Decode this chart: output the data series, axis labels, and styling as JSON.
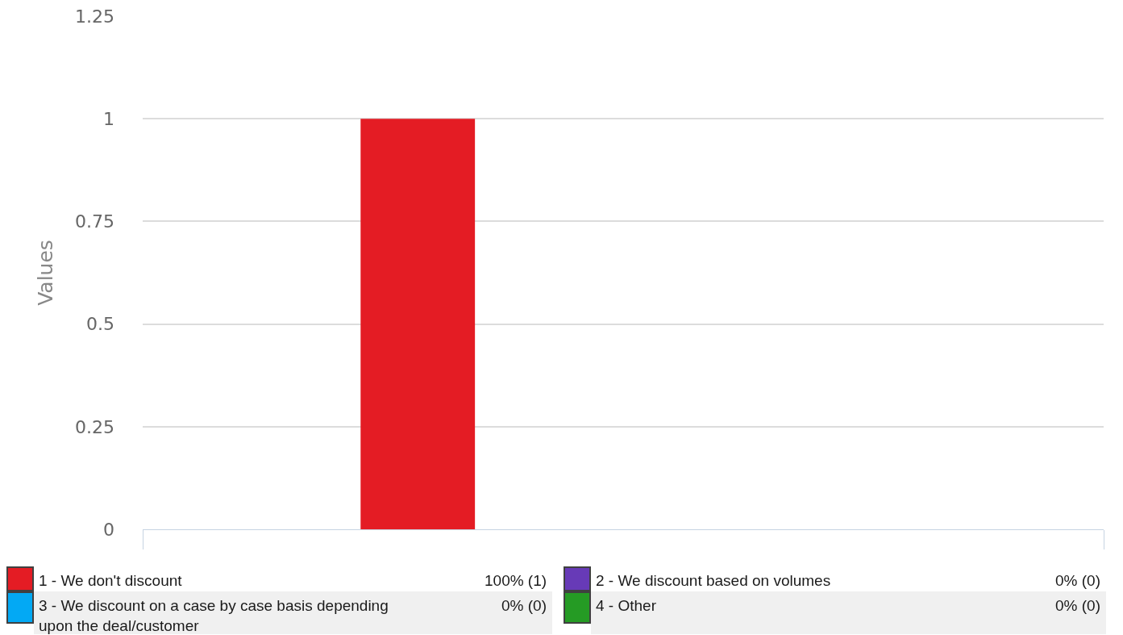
{
  "chart_data": {
    "type": "bar",
    "categories": [
      null
    ],
    "ylabel": "Values",
    "ylim": [
      0,
      1.25
    ],
    "yticks": [
      0,
      0.25,
      0.5,
      0.75,
      1,
      1.25
    ],
    "grid": "y",
    "legend": "bottom",
    "tick_labels": "y",
    "series": [
      {
        "name": "1 - We don't discount",
        "color": "#e41c24",
        "values": [
          1
        ]
      },
      {
        "name": "2 - We discount based on volumes",
        "color": "#673ab7",
        "values": [
          0
        ]
      },
      {
        "name": "3 - We discount on a case by case basis depending upon the deal/customer",
        "color": "#03a9f4",
        "values": [
          0
        ]
      },
      {
        "name": "4 - Other",
        "color": "#259b24",
        "values": [
          0
        ]
      }
    ],
    "annotations": [
      "100% (1)",
      "0% (0)",
      "0% (0)",
      "0% (0)"
    ]
  }
}
